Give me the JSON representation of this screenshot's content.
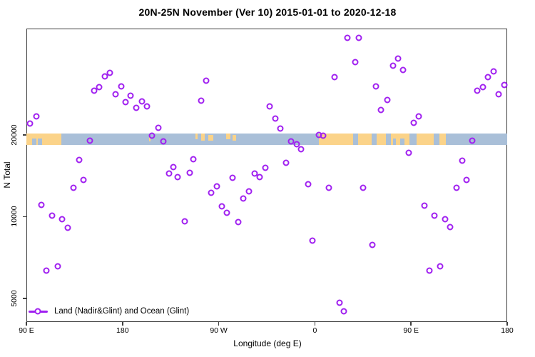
{
  "title": "20N-25N November (Ver 10)   2015-01-01 to 2020-12-18",
  "legend": {
    "label": "Land (Nadir&Glint) and Ocean (Glint)"
  },
  "axes": {
    "x": {
      "label": "Longitude (deg E)",
      "ticks": [
        {
          "lon": 90,
          "label": "90 E"
        },
        {
          "lon": 180,
          "label": "180"
        },
        {
          "lon": 270,
          "label": "90 W"
        },
        {
          "lon": 360,
          "label": "0"
        },
        {
          "lon": 450,
          "label": "90 E"
        },
        {
          "lon": 540,
          "label": "180"
        }
      ]
    },
    "y": {
      "label": "N Total",
      "scale": "log",
      "ticks": [
        {
          "value": 5000,
          "label": "5000"
        },
        {
          "value": 10000,
          "label": "10000"
        },
        {
          "value": 20000,
          "label": "20000"
        }
      ]
    }
  },
  "colors": {
    "point": "#A020F0",
    "land": "#FBD389",
    "ocean": "#A9BFD8",
    "axis": "#3E3E3E"
  },
  "map_band": {
    "description": "land/ocean strip for latitude band 20N-25N drawn at N=20000 level",
    "land_segments": [
      {
        "from": 90,
        "to": 122.5
      },
      {
        "from": 205,
        "to": 206.5,
        "t": 0.3,
        "h": 0.4
      },
      {
        "from": 248,
        "to": 250.5,
        "t": 0,
        "h": 0.5
      },
      {
        "from": 253.5,
        "to": 257,
        "t": 0,
        "h": 0.6
      },
      {
        "from": 260,
        "to": 265,
        "t": 0.1,
        "h": 0.55
      },
      {
        "from": 277,
        "to": 281,
        "t": 0,
        "h": 0.5
      },
      {
        "from": 283,
        "to": 286.5,
        "t": 0.15,
        "h": 0.5
      },
      {
        "from": 363.7,
        "to": 395.8
      },
      {
        "from": 400.4,
        "to": 413.2
      },
      {
        "from": 417.9,
        "to": 426.5
      },
      {
        "from": 431.2,
        "to": 448.5
      },
      {
        "from": 455.2,
        "to": 471.2
      },
      {
        "from": 476.6,
        "to": 482.6
      }
    ],
    "ocean_notches": [
      {
        "from": 95.5,
        "to": 99.5
      },
      {
        "from": 100.5,
        "to": 104.5
      },
      {
        "from": 433,
        "to": 436
      },
      {
        "from": 440,
        "to": 444
      }
    ]
  },
  "chart_data": {
    "type": "scatter",
    "title": "20N-25N November (Ver 10)   2015-01-01 to 2020-12-18",
    "xlabel": "Longitude (deg E)",
    "ylabel": "N Total",
    "x_axis_deg_span": [
      90,
      540
    ],
    "x_tick_labels": [
      "90 E",
      "180",
      "90 W",
      "0",
      "90 E",
      "180"
    ],
    "y_scale": "log",
    "ylim_approx": [
      4000,
      50000
    ],
    "legend_entries": [
      "Land (Nadir&Glint) and Ocean (Glint)"
    ],
    "grid": false,
    "marker": "open-circle",
    "points": [
      [
        93.3,
        22040
      ],
      [
        99.3,
        23430
      ],
      [
        149.4,
        19060
      ],
      [
        153.4,
        29120
      ],
      [
        158.1,
        30020
      ],
      [
        163.4,
        32880
      ],
      [
        168.1,
        33890
      ],
      [
        173.5,
        28260
      ],
      [
        178.8,
        30200
      ],
      [
        182.8,
        26430
      ],
      [
        187.5,
        27910
      ],
      [
        192.8,
        25130
      ],
      [
        198.2,
        26600
      ],
      [
        202.8,
        25480
      ],
      [
        207.5,
        19880
      ],
      [
        213.5,
        21250
      ],
      [
        218.2,
        18930
      ],
      [
        139.4,
        16180
      ],
      [
        143.4,
        13650
      ],
      [
        134.1,
        12780
      ],
      [
        104.0,
        11050
      ],
      [
        114.0,
        10080
      ],
      [
        123.4,
        9790
      ],
      [
        128.7,
        9100
      ],
      [
        108.7,
        6320
      ],
      [
        119.4,
        6560
      ],
      [
        227.5,
        15230
      ],
      [
        223.5,
        14420
      ],
      [
        231.5,
        13990
      ],
      [
        242.9,
        14500
      ],
      [
        246.3,
        16280
      ],
      [
        238.2,
        9610
      ],
      [
        258.3,
        31700
      ],
      [
        253.6,
        26760
      ],
      [
        283.0,
        13910
      ],
      [
        268.3,
        12930
      ],
      [
        262.9,
        12240
      ],
      [
        272.9,
        10910
      ],
      [
        277.6,
        10330
      ],
      [
        288.3,
        9540
      ],
      [
        303.7,
        14420
      ],
      [
        308.3,
        13990
      ],
      [
        313.7,
        15130
      ],
      [
        333.0,
        15790
      ],
      [
        298.3,
        12390
      ],
      [
        293.0,
        11660
      ],
      [
        317.7,
        25480
      ],
      [
        323.0,
        22990
      ],
      [
        327.7,
        21120
      ],
      [
        337.7,
        18930
      ],
      [
        343.0,
        18480
      ],
      [
        347.0,
        17720
      ],
      [
        353.7,
        13160
      ],
      [
        363.7,
        20000
      ],
      [
        367.7,
        19880
      ],
      [
        357.7,
        8160
      ],
      [
        373.1,
        12780
      ],
      [
        378.4,
        32680
      ],
      [
        390.4,
        45600
      ],
      [
        401.1,
        45600
      ],
      [
        397.8,
        37120
      ],
      [
        405.2,
        12780
      ],
      [
        383.1,
        4820
      ],
      [
        387.1,
        4480
      ],
      [
        413.8,
        7870
      ],
      [
        417.1,
        30200
      ],
      [
        427.8,
        26910
      ],
      [
        421.8,
        24720
      ],
      [
        433.1,
        36000
      ],
      [
        437.8,
        38250
      ],
      [
        442.5,
        34710
      ],
      [
        447.8,
        17180
      ],
      [
        452.5,
        22170
      ],
      [
        457.2,
        23430
      ],
      [
        462.5,
        10980
      ],
      [
        471.9,
        10080
      ],
      [
        467.2,
        6320
      ],
      [
        477.2,
        6560
      ],
      [
        481.9,
        9790
      ],
      [
        486.6,
        9150
      ],
      [
        492.6,
        12780
      ],
      [
        497.9,
        16080
      ],
      [
        501.9,
        13650
      ],
      [
        507.3,
        19060
      ],
      [
        512.0,
        29120
      ],
      [
        517.3,
        30020
      ],
      [
        522.0,
        32680
      ],
      [
        527.3,
        34300
      ],
      [
        532.0,
        28260
      ],
      [
        537.4,
        30580
      ]
    ]
  }
}
